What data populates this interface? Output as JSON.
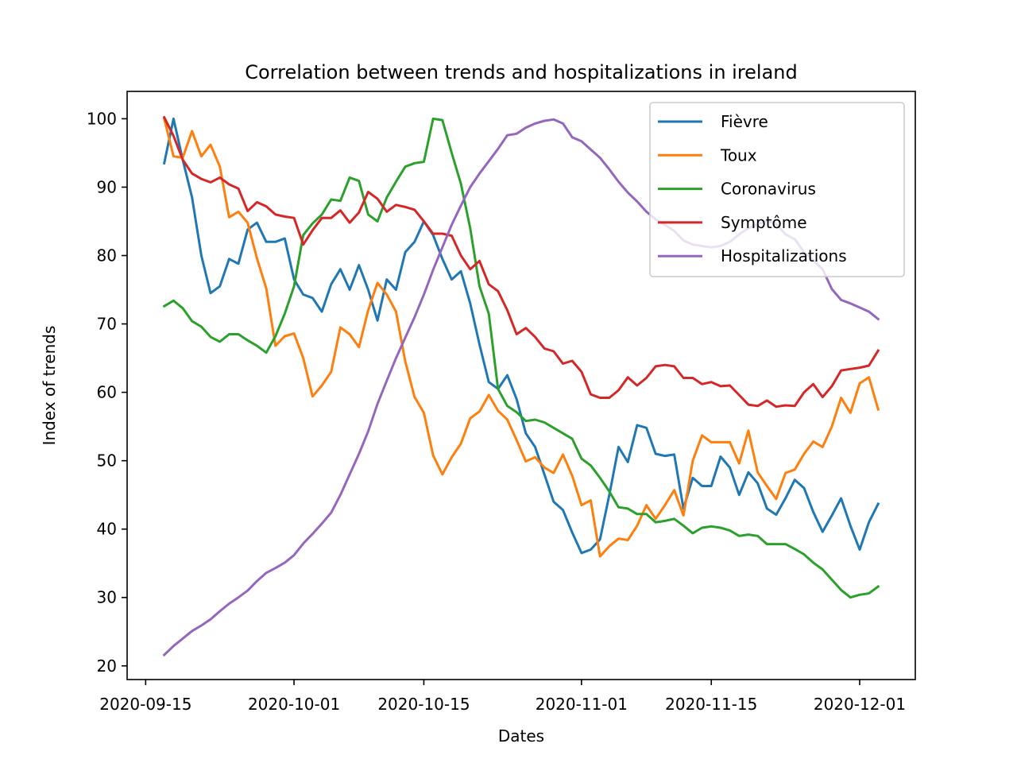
{
  "chart_data": {
    "type": "line",
    "title": "Correlation between trends and hospitalizations in ireland",
    "xlabel": "Dates",
    "ylabel": "Index of trends",
    "x_start": "2020-09-17",
    "x_step_days": 1,
    "xlim": [
      "2020-09-13",
      "2020-12-07"
    ],
    "ylim": [
      18,
      104
    ],
    "x_ticks": [
      "2020-09-15",
      "2020-10-01",
      "2020-10-15",
      "2020-11-01",
      "2020-11-15",
      "2020-12-01"
    ],
    "y_ticks": [
      20,
      30,
      40,
      50,
      60,
      70,
      80,
      90,
      100
    ],
    "grid": false,
    "legend_position": "upper right",
    "series": [
      {
        "name": "Fièvre",
        "color": "#1f77b4",
        "values": [
          93.5,
          100,
          94,
          88.5,
          80,
          74.5,
          75.5,
          79.5,
          78.8,
          83.8,
          84.8,
          82,
          82,
          82.5,
          76.5,
          74.3,
          73.8,
          71.8,
          75.8,
          78,
          75,
          78.6,
          75,
          70.5,
          76.5,
          75,
          80.5,
          82,
          85,
          83,
          79.5,
          76.5,
          77.7,
          73,
          67,
          61.5,
          60.5,
          62.5,
          59,
          54,
          52,
          48,
          44,
          42.8,
          39.5,
          36.5,
          37,
          38.5,
          45,
          52,
          49.8,
          55.2,
          54.8,
          51,
          50.7,
          50.9,
          43,
          47.5,
          46.3,
          46.3,
          50.6,
          49,
          45,
          48.3,
          46.7,
          43,
          42.1,
          44.5,
          47.2,
          46,
          42.5,
          39.6,
          42,
          44.5,
          40.5,
          37,
          41,
          43.7
        ]
      },
      {
        "name": "Toux",
        "color": "#ff7f0e",
        "values": [
          100,
          94.5,
          94.3,
          98.2,
          94.5,
          96.2,
          93,
          85.6,
          86.4,
          84.8,
          79.6,
          75.2,
          66.8,
          68.2,
          68.6,
          65,
          59.4,
          61,
          63,
          69.5,
          68.5,
          66.6,
          72,
          76,
          74.3,
          71.8,
          64.5,
          59.3,
          57,
          50.8,
          48,
          50.5,
          52.5,
          56.2,
          57.2,
          59.6,
          57.3,
          56,
          53,
          49.9,
          50.5,
          49,
          48.2,
          50.9,
          47.8,
          43.5,
          44.2,
          36,
          37.5,
          38.6,
          38.4,
          40.5,
          43.5,
          41.5,
          43.5,
          45.7,
          42,
          50,
          53.7,
          52.7,
          52.7,
          52.7,
          49.6,
          54.4,
          48.3,
          46.3,
          44.4,
          48.2,
          48.7,
          51,
          52.8,
          52,
          55,
          59.2,
          57,
          61.3,
          62.2,
          57.5
        ]
      },
      {
        "name": "Coronavirus",
        "color": "#2ca02c",
        "values": [
          72.6,
          73.4,
          72.3,
          70.4,
          69.6,
          68.1,
          67.4,
          68.5,
          68.5,
          67.6,
          66.8,
          65.8,
          68.2,
          71.5,
          75.5,
          83,
          84.7,
          86,
          88.2,
          88,
          91.4,
          90.9,
          86,
          85,
          88.5,
          90.8,
          93,
          93.5,
          93.7,
          100,
          99.8,
          95,
          90.5,
          84,
          75.5,
          71.5,
          60.5,
          58,
          57.1,
          55.8,
          56,
          55.6,
          54.8,
          54,
          53.2,
          50.3,
          49.3,
          47.5,
          45.5,
          43.2,
          43,
          42.2,
          42.2,
          41,
          41.2,
          41.5,
          40.5,
          39.4,
          40.2,
          40.4,
          40.2,
          39.8,
          39,
          39.2,
          39,
          37.8,
          37.8,
          37.8,
          37.1,
          36.3,
          35.1,
          34.1,
          32.6,
          31.1,
          30,
          30.4,
          30.6,
          31.6
        ]
      },
      {
        "name": "Symptôme",
        "color": "#d62728",
        "values": [
          100.2,
          97.5,
          94,
          92,
          91.2,
          90.7,
          91.4,
          90.4,
          89.8,
          86.5,
          87.8,
          87.2,
          86,
          85.7,
          85.5,
          81.6,
          83.7,
          85.5,
          85.5,
          86.6,
          84.8,
          86.3,
          89.3,
          88.3,
          86.4,
          87.4,
          87.1,
          86.7,
          85,
          83.2,
          83.2,
          82.9,
          80,
          78,
          79.2,
          75.8,
          74.8,
          72,
          68.5,
          69.4,
          68.1,
          66.4,
          66,
          64.2,
          64.6,
          63,
          59.7,
          59.2,
          59.2,
          60.3,
          62.2,
          61,
          62.1,
          63.8,
          64,
          63.8,
          62.1,
          62.1,
          61.2,
          61.5,
          60.9,
          61,
          59.6,
          58.2,
          58,
          58.8,
          57.9,
          58.1,
          58,
          60,
          61.2,
          59.3,
          60.9,
          63.2,
          63.4,
          63.6,
          63.9,
          66.1
        ]
      },
      {
        "name": "Hospitalizations",
        "color": "#9467bd",
        "values": [
          21.6,
          22.9,
          24,
          25.1,
          25.9,
          26.8,
          28,
          29.1,
          30,
          31,
          32.4,
          33.6,
          34.3,
          35.1,
          36.2,
          37.9,
          39.3,
          40.8,
          42.4,
          45,
          48,
          51,
          54.3,
          58.3,
          61.7,
          65,
          68,
          71,
          74.3,
          77.9,
          81.2,
          84.5,
          87.3,
          90,
          92,
          93.8,
          95.6,
          97.6,
          97.8,
          98.7,
          99.3,
          99.7,
          99.9,
          99.3,
          97.3,
          96.7,
          95.5,
          94.3,
          92.6,
          90.8,
          89.2,
          87.9,
          86.4,
          85.3,
          84.5,
          83.6,
          82.2,
          81.6,
          81.4,
          81.2,
          81.4,
          82,
          83.1,
          84,
          84.6,
          85.1,
          84.6,
          83.1,
          82.4,
          80.5,
          79.3,
          78,
          75.1,
          73.5,
          73,
          72.4,
          71.8,
          70.7
        ]
      }
    ]
  }
}
